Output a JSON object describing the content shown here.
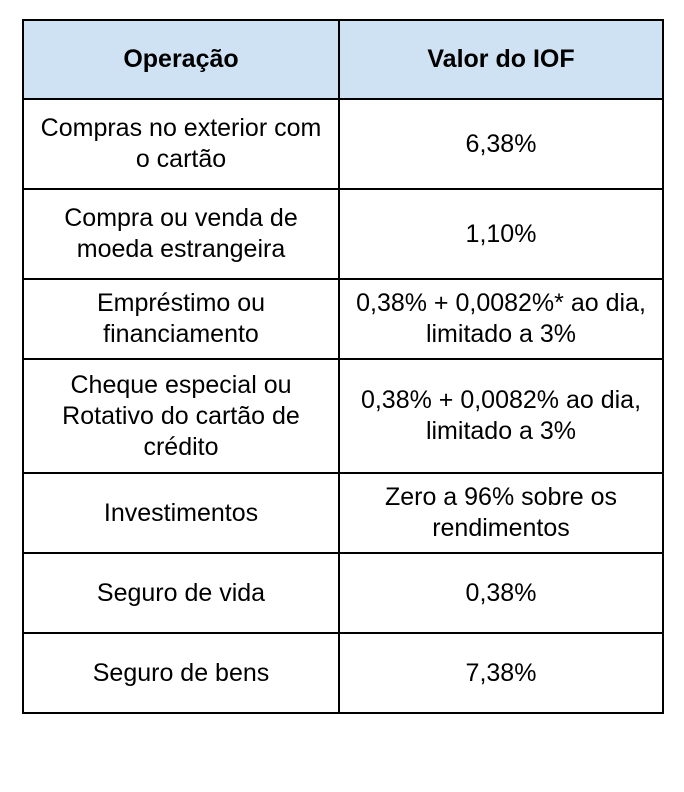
{
  "table": {
    "header_bg": "#cfe2f3",
    "headers": {
      "operation": "Operação",
      "value": "Valor do IOF"
    },
    "rows": [
      {
        "operation": "Compras no exterior com o cartão",
        "value": "6,38%"
      },
      {
        "operation": "Compra ou venda de moeda estrangeira",
        "value": "1,10%"
      },
      {
        "operation": "Empréstimo ou financiamento",
        "value": "0,38% + 0,0082%* ao dia, limitado a 3%"
      },
      {
        "operation": "Cheque especial ou Rotativo do cartão de crédito",
        "value": "0,38% + 0,0082% ao dia, limitado a 3%"
      },
      {
        "operation": "Investimentos",
        "value": "Zero a 96% sobre os rendimentos"
      },
      {
        "operation": "Seguro de vida",
        "value": "0,38%"
      },
      {
        "operation": "Seguro de bens",
        "value": "7,38%"
      }
    ]
  }
}
